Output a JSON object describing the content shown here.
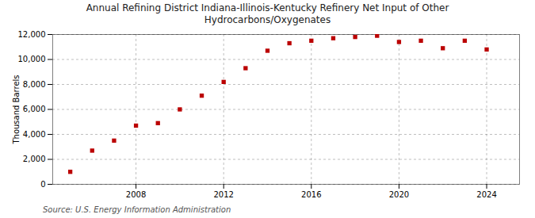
{
  "chart_data": {
    "type": "scatter",
    "title": "Annual Refining District Indiana-Illinois-Kentucky Refinery Net Input of Other\nHydrocarbons/Oxygenates",
    "ylabel": "Thousand Barrels",
    "annotations": [
      "Source: U.S. Energy Information Administration"
    ],
    "x": [
      2005,
      2006,
      2007,
      2008,
      2009,
      2010,
      2011,
      2012,
      2013,
      2014,
      2015,
      2016,
      2017,
      2018,
      2019,
      2020,
      2021,
      2022,
      2023,
      2024
    ],
    "values": [
      1000,
      2700,
      3500,
      4700,
      4900,
      6000,
      7100,
      8200,
      9300,
      10700,
      11300,
      11500,
      11700,
      11800,
      11900,
      11400,
      11500,
      10900,
      11500,
      10800
    ],
    "color": "#bb0000",
    "marker": "square",
    "xlim": [
      2004.2,
      2025.5
    ],
    "xticks": [
      2008,
      2012,
      2016,
      2020,
      2024
    ],
    "ylim": [
      0,
      12000
    ],
    "yticks": [
      0,
      {
        "value": 2000,
        "label": "2,000"
      },
      {
        "value": 4000,
        "label": "4,000"
      },
      {
        "value": 6000,
        "label": "6,000"
      },
      {
        "value": 8000,
        "label": "8,000"
      },
      {
        "value": 10000,
        "label": "10,000"
      },
      {
        "value": 12000,
        "label": "12,000"
      }
    ],
    "grid": true
  }
}
